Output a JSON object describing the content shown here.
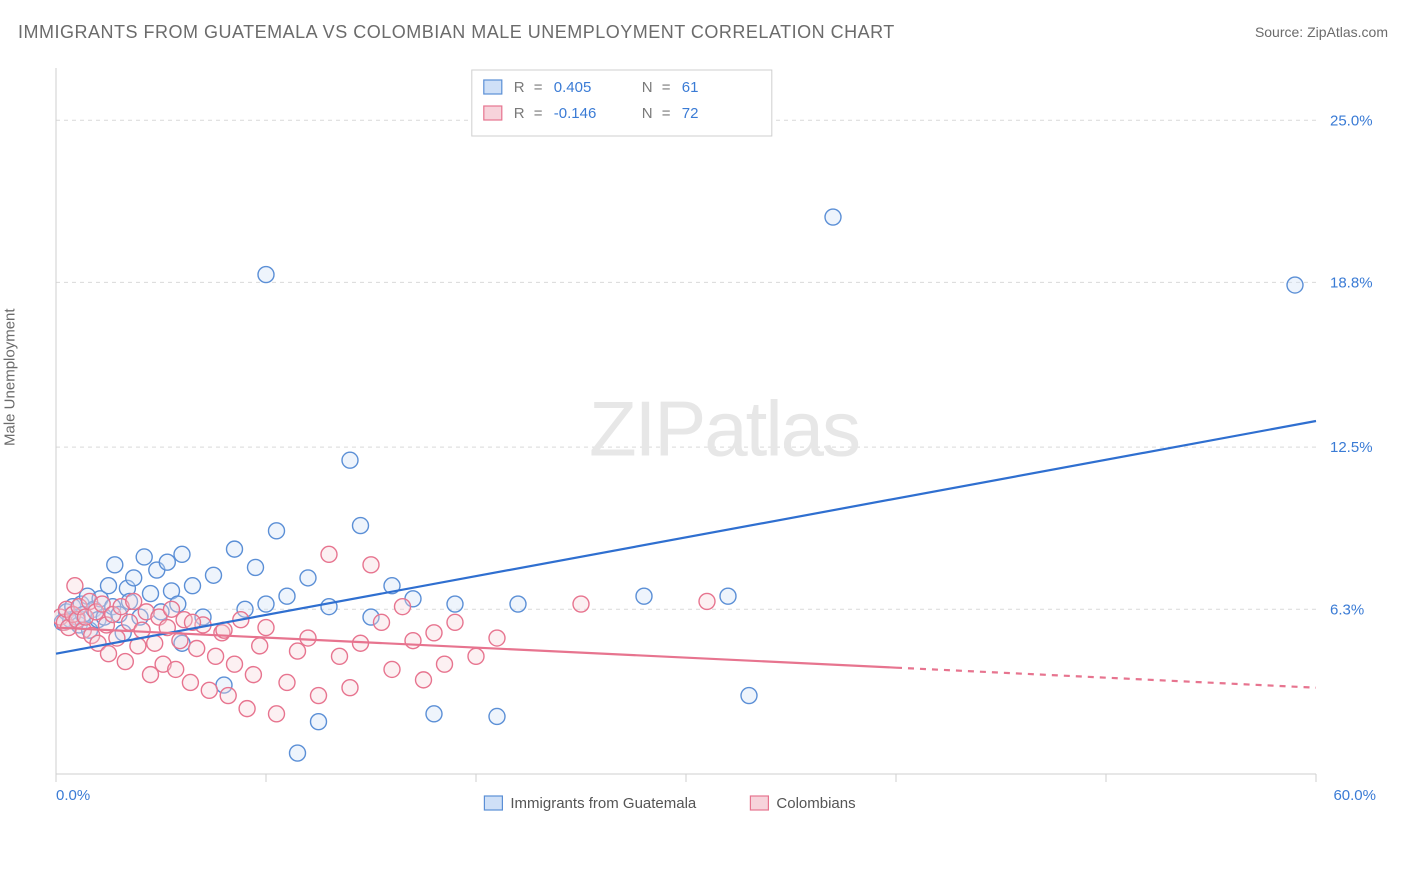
{
  "title": "IMMIGRANTS FROM GUATEMALA VS COLOMBIAN MALE UNEMPLOYMENT CORRELATION CHART",
  "source": "Source: ZipAtlas.com",
  "watermark_left": "ZIP",
  "watermark_right": "atlas",
  "chart": {
    "type": "scatter",
    "background_color": "#ffffff",
    "grid_color": "#d9d9d9",
    "axis_line_color": "#cfcfcf",
    "label_color": "#3a7bd5",
    "title_color": "#6b6b6b",
    "y_axis_title": "Male Unemployment",
    "xlim": [
      0,
      60
    ],
    "ylim": [
      0,
      27
    ],
    "x_ticks": [
      0,
      10,
      20,
      30,
      40,
      50,
      60
    ],
    "x_tick_labels": {
      "0": "0.0%",
      "60": "60.0%"
    },
    "y_gridlines": [
      6.3,
      12.5,
      18.8,
      25.0
    ],
    "y_tick_labels": [
      "6.3%",
      "12.5%",
      "18.8%",
      "25.0%"
    ],
    "marker_radius": 8,
    "marker_fill_opacity": 0.35,
    "marker_stroke_width": 1.4,
    "trend_line_width": 2.2,
    "legend_box": {
      "R_label": "R",
      "N_label": "N",
      "eq": "=",
      "rows": [
        {
          "swatch_fill": "#cfe0f7",
          "swatch_stroke": "#5b8fd6",
          "R": "0.405",
          "N": "61",
          "value_color": "#3a7bd5"
        },
        {
          "swatch_fill": "#f7d3db",
          "swatch_stroke": "#e7748f",
          "R": "-0.146",
          "N": "72",
          "value_color": "#3a7bd5"
        }
      ],
      "label_color": "#7a7a7a"
    },
    "series": [
      {
        "name": "Immigrants from Guatemala",
        "color_fill": "#cfe0f7",
        "color_stroke": "#5b8fd6",
        "trend_color": "#2f6fd0",
        "trend": {
          "x1": 0,
          "y1": 4.6,
          "x2": 60,
          "y2": 13.5,
          "dash_after_x": null
        },
        "points": [
          [
            0.3,
            5.8
          ],
          [
            0.5,
            6.2
          ],
          [
            0.7,
            5.9
          ],
          [
            0.8,
            6.4
          ],
          [
            1.0,
            6.0
          ],
          [
            1.1,
            5.7
          ],
          [
            1.2,
            6.5
          ],
          [
            1.3,
            6.1
          ],
          [
            1.5,
            6.8
          ],
          [
            1.6,
            5.5
          ],
          [
            1.8,
            6.3
          ],
          [
            2.0,
            5.9
          ],
          [
            2.1,
            6.7
          ],
          [
            2.3,
            6.0
          ],
          [
            2.5,
            7.2
          ],
          [
            2.7,
            6.4
          ],
          [
            2.8,
            8.0
          ],
          [
            3.0,
            6.1
          ],
          [
            3.2,
            5.4
          ],
          [
            3.4,
            7.1
          ],
          [
            3.5,
            6.6
          ],
          [
            3.7,
            7.5
          ],
          [
            4.0,
            6.0
          ],
          [
            4.2,
            8.3
          ],
          [
            4.5,
            6.9
          ],
          [
            4.8,
            7.8
          ],
          [
            5.0,
            6.2
          ],
          [
            5.3,
            8.1
          ],
          [
            5.5,
            7.0
          ],
          [
            5.8,
            6.5
          ],
          [
            6.0,
            8.4
          ],
          [
            6.5,
            7.2
          ],
          [
            7.0,
            6.0
          ],
          [
            7.5,
            7.6
          ],
          [
            8.0,
            3.4
          ],
          [
            8.5,
            8.6
          ],
          [
            9.0,
            6.3
          ],
          [
            9.5,
            7.9
          ],
          [
            10.0,
            6.5
          ],
          [
            10.5,
            9.3
          ],
          [
            11.0,
            6.8
          ],
          [
            11.5,
            0.8
          ],
          [
            12.0,
            7.5
          ],
          [
            12.5,
            2.0
          ],
          [
            13.0,
            6.4
          ],
          [
            14.0,
            12.0
          ],
          [
            14.5,
            9.5
          ],
          [
            15.0,
            6.0
          ],
          [
            16.0,
            7.2
          ],
          [
            17.0,
            6.7
          ],
          [
            18.0,
            2.3
          ],
          [
            19.0,
            6.5
          ],
          [
            21.0,
            2.2
          ],
          [
            22.0,
            6.5
          ],
          [
            28.0,
            6.8
          ],
          [
            32.0,
            6.8
          ],
          [
            33.0,
            3.0
          ],
          [
            37.0,
            21.3
          ],
          [
            10.0,
            19.1
          ],
          [
            59.0,
            18.7
          ],
          [
            6.0,
            5.0
          ]
        ]
      },
      {
        "name": "Colombians",
        "color_fill": "#f7d3db",
        "color_stroke": "#e7748f",
        "trend_color": "#e7748f",
        "trend": {
          "x1": 0,
          "y1": 5.6,
          "x2": 60,
          "y2": 3.3,
          "dash_after_x": 40
        },
        "points": [
          [
            0.2,
            6.0
          ],
          [
            0.4,
            5.8
          ],
          [
            0.5,
            6.3
          ],
          [
            0.6,
            5.6
          ],
          [
            0.8,
            6.1
          ],
          [
            0.9,
            7.2
          ],
          [
            1.0,
            5.9
          ],
          [
            1.1,
            6.4
          ],
          [
            1.3,
            5.5
          ],
          [
            1.4,
            6.0
          ],
          [
            1.6,
            6.6
          ],
          [
            1.7,
            5.3
          ],
          [
            1.9,
            6.2
          ],
          [
            2.0,
            5.0
          ],
          [
            2.2,
            6.5
          ],
          [
            2.4,
            5.7
          ],
          [
            2.5,
            4.6
          ],
          [
            2.7,
            6.1
          ],
          [
            2.9,
            5.2
          ],
          [
            3.1,
            6.4
          ],
          [
            3.3,
            4.3
          ],
          [
            3.5,
            5.8
          ],
          [
            3.7,
            6.6
          ],
          [
            3.9,
            4.9
          ],
          [
            4.1,
            5.5
          ],
          [
            4.3,
            6.2
          ],
          [
            4.5,
            3.8
          ],
          [
            4.7,
            5.0
          ],
          [
            4.9,
            6.0
          ],
          [
            5.1,
            4.2
          ],
          [
            5.3,
            5.6
          ],
          [
            5.5,
            6.3
          ],
          [
            5.7,
            4.0
          ],
          [
            5.9,
            5.1
          ],
          [
            6.1,
            5.9
          ],
          [
            6.4,
            3.5
          ],
          [
            6.7,
            4.8
          ],
          [
            7.0,
            5.7
          ],
          [
            7.3,
            3.2
          ],
          [
            7.6,
            4.5
          ],
          [
            7.9,
            5.4
          ],
          [
            8.2,
            3.0
          ],
          [
            8.5,
            4.2
          ],
          [
            8.8,
            5.9
          ],
          [
            9.1,
            2.5
          ],
          [
            9.4,
            3.8
          ],
          [
            9.7,
            4.9
          ],
          [
            10.0,
            5.6
          ],
          [
            10.5,
            2.3
          ],
          [
            11.0,
            3.5
          ],
          [
            11.5,
            4.7
          ],
          [
            12.0,
            5.2
          ],
          [
            12.5,
            3.0
          ],
          [
            13.0,
            8.4
          ],
          [
            13.5,
            4.5
          ],
          [
            14.0,
            3.3
          ],
          [
            14.5,
            5.0
          ],
          [
            15.0,
            8.0
          ],
          [
            15.5,
            5.8
          ],
          [
            16.0,
            4.0
          ],
          [
            16.5,
            6.4
          ],
          [
            17.0,
            5.1
          ],
          [
            17.5,
            3.6
          ],
          [
            18.0,
            5.4
          ],
          [
            18.5,
            4.2
          ],
          [
            19.0,
            5.8
          ],
          [
            20.0,
            4.5
          ],
          [
            21.0,
            5.2
          ],
          [
            25.0,
            6.5
          ],
          [
            31.0,
            6.6
          ],
          [
            8.0,
            5.5
          ],
          [
            6.5,
            5.8
          ]
        ]
      }
    ],
    "bottom_legend": [
      {
        "label": "Immigrants from Guatemala",
        "swatch_fill": "#cfe0f7",
        "swatch_stroke": "#5b8fd6"
      },
      {
        "label": "Colombians",
        "swatch_fill": "#f7d3db",
        "swatch_stroke": "#e7748f"
      }
    ]
  }
}
